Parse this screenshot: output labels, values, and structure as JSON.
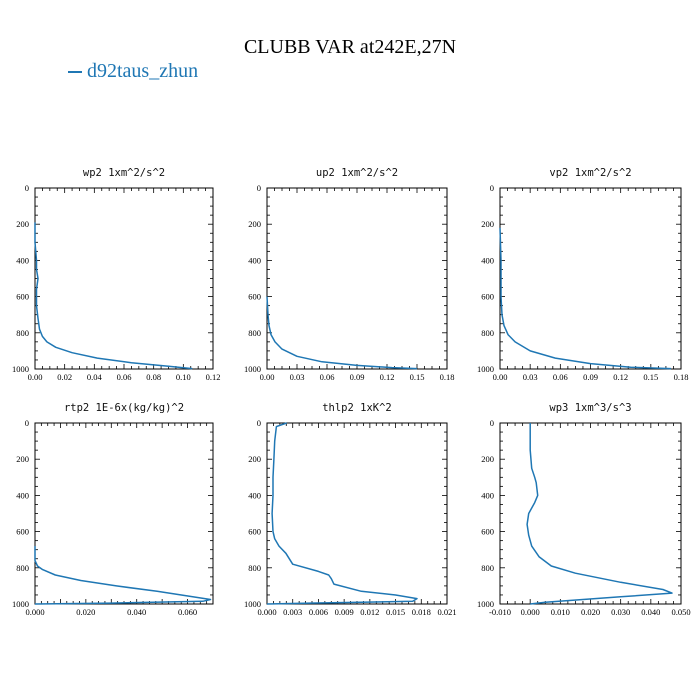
{
  "figure": {
    "title": "CLUBB VAR at242E,27N",
    "legend": "d92taus_zhun",
    "line_color": "#1f77b4"
  },
  "chart_data": [
    {
      "type": "line",
      "title": "wp2  1xm^2/s^2",
      "xlim": [
        0,
        0.12
      ],
      "xticks": [
        "0.00",
        "0.02",
        "0.04",
        "0.06",
        "0.08",
        "0.10",
        "0.12"
      ],
      "ylim": [
        1000,
        0
      ],
      "yticks": [
        "0",
        "200",
        "400",
        "600",
        "800",
        "1000"
      ],
      "series": [
        {
          "x": [
            0.0,
            0.0,
            0.001,
            0.001,
            0.002,
            0.001,
            0.001,
            0.002,
            0.003,
            0.005,
            0.008,
            0.014,
            0.025,
            0.042,
            0.065,
            0.09,
            0.106
          ],
          "y": [
            190,
            300,
            400,
            450,
            500,
            560,
            650,
            720,
            780,
            820,
            850,
            880,
            910,
            940,
            965,
            985,
            998
          ]
        }
      ]
    },
    {
      "type": "line",
      "title": "up2  1xm^2/s^2",
      "xlim": [
        0,
        0.18
      ],
      "xticks": [
        "0.00",
        "0.03",
        "0.06",
        "0.09",
        "0.12",
        "0.15",
        "0.18"
      ],
      "ylim": [
        1000,
        0
      ],
      "yticks": [
        "0",
        "200",
        "400",
        "600",
        "800",
        "1000"
      ],
      "series": [
        {
          "x": [
            0.0,
            0.001,
            0.002,
            0.004,
            0.008,
            0.015,
            0.03,
            0.055,
            0.09,
            0.125,
            0.15
          ],
          "y": [
            600,
            700,
            760,
            810,
            850,
            890,
            930,
            960,
            980,
            992,
            998
          ]
        }
      ]
    },
    {
      "type": "line",
      "title": "vp2  1xm^2/s^2",
      "xlim": [
        0,
        0.18
      ],
      "xticks": [
        "0.00",
        "0.03",
        "0.06",
        "0.09",
        "0.12",
        "0.15",
        "0.18"
      ],
      "ylim": [
        1000,
        0
      ],
      "yticks": [
        "0",
        "200",
        "400",
        "600",
        "800",
        "1000"
      ],
      "series": [
        {
          "x": [
            0.0,
            0.001,
            0.001,
            0.002,
            0.004,
            0.008,
            0.015,
            0.03,
            0.055,
            0.09,
            0.13,
            0.17
          ],
          "y": [
            220,
            400,
            600,
            700,
            760,
            810,
            850,
            900,
            940,
            970,
            990,
            998
          ]
        }
      ]
    },
    {
      "type": "line",
      "title": "rtp2  1E-6x(kg/kg)^2",
      "xlim": [
        0,
        0.07
      ],
      "xticks": [
        "0.000",
        "",
        "0.020",
        "",
        "0.040",
        "",
        "0.060",
        ""
      ],
      "ylim": [
        1000,
        0
      ],
      "yticks": [
        "0",
        "200",
        "400",
        "600",
        "800",
        "1000"
      ],
      "series": [
        {
          "x": [
            0.0,
            0.0,
            0.001,
            0.003,
            0.008,
            0.018,
            0.032,
            0.048,
            0.062,
            0.069,
            0.066,
            0.03,
            0.0
          ],
          "y": [
            680,
            760,
            790,
            810,
            840,
            870,
            900,
            930,
            960,
            975,
            985,
            995,
            1000
          ]
        }
      ]
    },
    {
      "type": "line",
      "title": "thlp2  1xK^2",
      "xlim": [
        0,
        0.021
      ],
      "xticks": [
        "0.000",
        "0.003",
        "0.006",
        "0.009",
        "0.012",
        "0.015",
        "0.018",
        "0.021"
      ],
      "ylim": [
        1000,
        0
      ],
      "yticks": [
        "0",
        "200",
        "400",
        "600",
        "800",
        "1000"
      ],
      "series": [
        {
          "x": [
            0.0023,
            0.0011,
            0.0009,
            0.0008,
            0.0007,
            0.0007,
            0.0006,
            0.0007,
            0.0009,
            0.0014,
            0.0022,
            0.003,
            0.006,
            0.0072,
            0.0075,
            0.0078,
            0.011,
            0.015,
            0.0175,
            0.017,
            0.005,
            0.0
          ],
          "y": [
            0,
            20,
            100,
            200,
            300,
            400,
            500,
            600,
            640,
            680,
            720,
            780,
            820,
            840,
            860,
            890,
            930,
            950,
            970,
            985,
            995,
            1000
          ]
        }
      ]
    },
    {
      "type": "line",
      "title": "wp3  1xm^3/s^3",
      "xlim": [
        -0.01,
        0.05
      ],
      "xticks": [
        "-0.010",
        "0.000",
        "0.010",
        "0.020",
        "0.030",
        "0.040",
        "0.050"
      ],
      "ylim": [
        1000,
        0
      ],
      "yticks": [
        "0",
        "200",
        "400",
        "600",
        "800",
        "1000"
      ],
      "series": [
        {
          "x": [
            0.0,
            0.0,
            0.0005,
            0.0015,
            0.002,
            0.0025,
            0.0015,
            -0.0005,
            -0.001,
            -0.0005,
            0.0005,
            0.003,
            0.007,
            0.015,
            0.03,
            0.044,
            0.047,
            0.03,
            0.005,
            0.0
          ],
          "y": [
            0,
            150,
            250,
            300,
            330,
            400,
            440,
            500,
            560,
            620,
            680,
            740,
            790,
            830,
            880,
            920,
            940,
            960,
            990,
            1000
          ]
        }
      ]
    }
  ]
}
